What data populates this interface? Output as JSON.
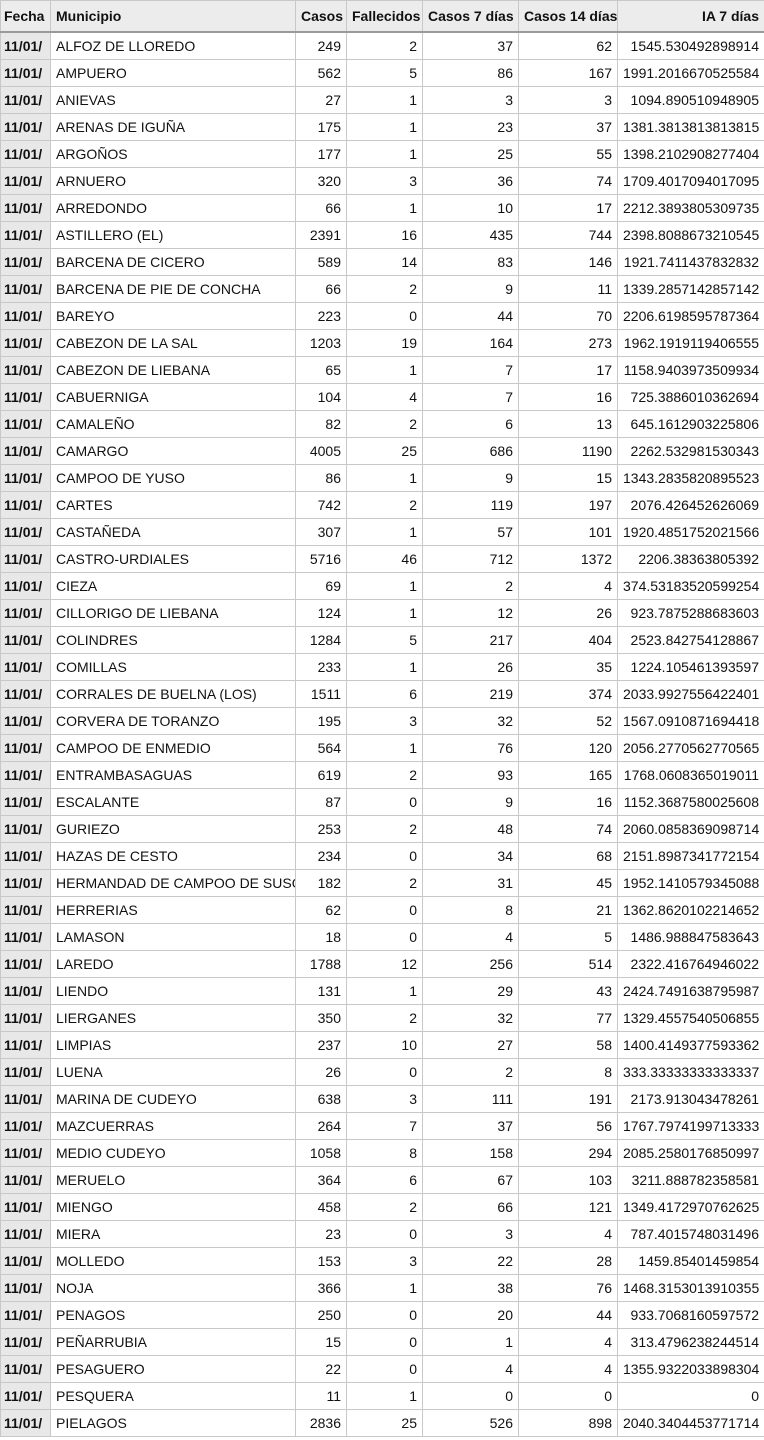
{
  "table": {
    "header": [
      "Fecha",
      "Municipio",
      "Casos",
      "Fallecidos",
      "Casos 7 días",
      "Casos 14 días",
      "IA 7 días"
    ],
    "rows": [
      [
        "11/01/",
        "ALFOZ DE LLOREDO",
        "249",
        "2",
        "37",
        "62",
        "1545.530492898914"
      ],
      [
        "11/01/",
        "AMPUERO",
        "562",
        "5",
        "86",
        "167",
        "1991.2016670525584"
      ],
      [
        "11/01/",
        "ANIEVAS",
        "27",
        "1",
        "3",
        "3",
        "1094.890510948905"
      ],
      [
        "11/01/",
        "ARENAS DE IGUÑA",
        "175",
        "1",
        "23",
        "37",
        "1381.3813813813815"
      ],
      [
        "11/01/",
        "ARGOÑOS",
        "177",
        "1",
        "25",
        "55",
        "1398.2102908277404"
      ],
      [
        "11/01/",
        "ARNUERO",
        "320",
        "3",
        "36",
        "74",
        "1709.4017094017095"
      ],
      [
        "11/01/",
        "ARREDONDO",
        "66",
        "1",
        "10",
        "17",
        "2212.3893805309735"
      ],
      [
        "11/01/",
        "ASTILLERO (EL)",
        "2391",
        "16",
        "435",
        "744",
        "2398.8088673210545"
      ],
      [
        "11/01/",
        "BARCENA DE CICERO",
        "589",
        "14",
        "83",
        "146",
        "1921.7411437832832"
      ],
      [
        "11/01/",
        "BARCENA DE PIE DE CONCHA",
        "66",
        "2",
        "9",
        "11",
        "1339.2857142857142"
      ],
      [
        "11/01/",
        "BAREYO",
        "223",
        "0",
        "44",
        "70",
        "2206.6198595787364"
      ],
      [
        "11/01/",
        "CABEZON DE LA SAL",
        "1203",
        "19",
        "164",
        "273",
        "1962.1919119406555"
      ],
      [
        "11/01/",
        "CABEZON DE LIEBANA",
        "65",
        "1",
        "7",
        "17",
        "1158.9403973509934"
      ],
      [
        "11/01/",
        "CABUERNIGA",
        "104",
        "4",
        "7",
        "16",
        "725.3886010362694"
      ],
      [
        "11/01/",
        "CAMALEÑO",
        "82",
        "2",
        "6",
        "13",
        "645.1612903225806"
      ],
      [
        "11/01/",
        "CAMARGO",
        "4005",
        "25",
        "686",
        "1190",
        "2262.532981530343"
      ],
      [
        "11/01/",
        "CAMPOO DE YUSO",
        "86",
        "1",
        "9",
        "15",
        "1343.2835820895523"
      ],
      [
        "11/01/",
        "CARTES",
        "742",
        "2",
        "119",
        "197",
        "2076.426452626069"
      ],
      [
        "11/01/",
        "CASTAÑEDA",
        "307",
        "1",
        "57",
        "101",
        "1920.4851752021566"
      ],
      [
        "11/01/",
        "CASTRO-URDIALES",
        "5716",
        "46",
        "712",
        "1372",
        "2206.38363805392"
      ],
      [
        "11/01/",
        "CIEZA",
        "69",
        "1",
        "2",
        "4",
        "374.53183520599254"
      ],
      [
        "11/01/",
        "CILLORIGO DE LIEBANA",
        "124",
        "1",
        "12",
        "26",
        "923.7875288683603"
      ],
      [
        "11/01/",
        "COLINDRES",
        "1284",
        "5",
        "217",
        "404",
        "2523.842754128867"
      ],
      [
        "11/01/",
        "COMILLAS",
        "233",
        "1",
        "26",
        "35",
        "1224.105461393597"
      ],
      [
        "11/01/",
        "CORRALES DE BUELNA (LOS)",
        "1511",
        "6",
        "219",
        "374",
        "2033.9927556422401"
      ],
      [
        "11/01/",
        "CORVERA DE TORANZO",
        "195",
        "3",
        "32",
        "52",
        "1567.0910871694418"
      ],
      [
        "11/01/",
        "CAMPOO DE ENMEDIO",
        "564",
        "1",
        "76",
        "120",
        "2056.2770562770565"
      ],
      [
        "11/01/",
        "ENTRAMBASAGUAS",
        "619",
        "2",
        "93",
        "165",
        "1768.0608365019011"
      ],
      [
        "11/01/",
        "ESCALANTE",
        "87",
        "0",
        "9",
        "16",
        "1152.3687580025608"
      ],
      [
        "11/01/",
        "GURIEZO",
        "253",
        "2",
        "48",
        "74",
        "2060.0858369098714"
      ],
      [
        "11/01/",
        "HAZAS DE CESTO",
        "234",
        "0",
        "34",
        "68",
        "2151.8987341772154"
      ],
      [
        "11/01/",
        "HERMANDAD DE CAMPOO DE SUSO",
        "182",
        "2",
        "31",
        "45",
        "1952.1410579345088"
      ],
      [
        "11/01/",
        "HERRERIAS",
        "62",
        "0",
        "8",
        "21",
        "1362.8620102214652"
      ],
      [
        "11/01/",
        "LAMASON",
        "18",
        "0",
        "4",
        "5",
        "1486.988847583643"
      ],
      [
        "11/01/",
        "LAREDO",
        "1788",
        "12",
        "256",
        "514",
        "2322.416764946022"
      ],
      [
        "11/01/",
        "LIENDO",
        "131",
        "1",
        "29",
        "43",
        "2424.7491638795987"
      ],
      [
        "11/01/",
        "LIERGANES",
        "350",
        "2",
        "32",
        "77",
        "1329.4557540506855"
      ],
      [
        "11/01/",
        "LIMPIAS",
        "237",
        "10",
        "27",
        "58",
        "1400.4149377593362"
      ],
      [
        "11/01/",
        "LUENA",
        "26",
        "0",
        "2",
        "8",
        "333.33333333333337"
      ],
      [
        "11/01/",
        "MARINA DE CUDEYO",
        "638",
        "3",
        "111",
        "191",
        "2173.913043478261"
      ],
      [
        "11/01/",
        "MAZCUERRAS",
        "264",
        "7",
        "37",
        "56",
        "1767.7974199713333"
      ],
      [
        "11/01/",
        "MEDIO CUDEYO",
        "1058",
        "8",
        "158",
        "294",
        "2085.2580176850997"
      ],
      [
        "11/01/",
        "MERUELO",
        "364",
        "6",
        "67",
        "103",
        "3211.888782358581"
      ],
      [
        "11/01/",
        "MIENGO",
        "458",
        "2",
        "66",
        "121",
        "1349.4172970762625"
      ],
      [
        "11/01/",
        "MIERA",
        "23",
        "0",
        "3",
        "4",
        "787.4015748031496"
      ],
      [
        "11/01/",
        "MOLLEDO",
        "153",
        "3",
        "22",
        "28",
        "1459.85401459854"
      ],
      [
        "11/01/",
        "NOJA",
        "366",
        "1",
        "38",
        "76",
        "1468.3153013910355"
      ],
      [
        "11/01/",
        "PENAGOS",
        "250",
        "0",
        "20",
        "44",
        "933.7068160597572"
      ],
      [
        "11/01/",
        "PEÑARRUBIA",
        "15",
        "0",
        "1",
        "4",
        "313.4796238244514"
      ],
      [
        "11/01/",
        "PESAGUERO",
        "22",
        "0",
        "4",
        "4",
        "1355.9322033898304"
      ],
      [
        "11/01/",
        "PESQUERA",
        "11",
        "1",
        "0",
        "0",
        "0"
      ],
      [
        "11/01/",
        "PIELAGOS",
        "2836",
        "25",
        "526",
        "898",
        "2040.3404453771714"
      ]
    ]
  }
}
